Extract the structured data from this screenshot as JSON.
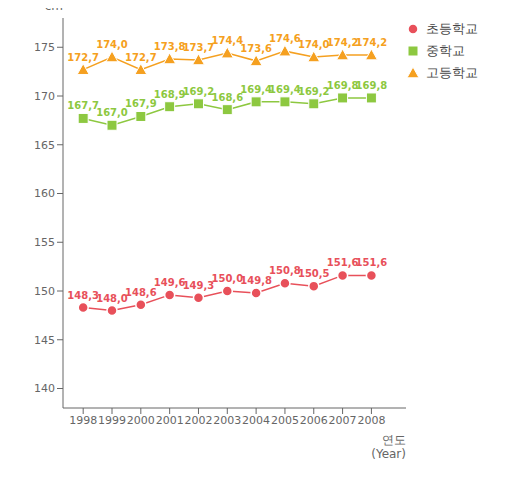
{
  "chart_data": {
    "type": "line",
    "x": [
      1998,
      1999,
      2000,
      2001,
      2002,
      2003,
      2004,
      2005,
      2006,
      2007,
      2008
    ],
    "xlim": [
      1997.3,
      2009.2
    ],
    "xticks": [
      1998,
      1999,
      2000,
      2001,
      2002,
      2003,
      2004,
      2005,
      2006,
      2007,
      2008
    ],
    "ylim": [
      138,
      178
    ],
    "yticks": [
      140,
      145,
      150,
      155,
      160,
      165,
      170,
      175
    ],
    "ylabel": "cm",
    "xlabel": "연도\n(Year)",
    "legend": "upper right",
    "data_labels": true,
    "grid": false,
    "series": [
      {
        "name": "초등학교",
        "color": "#e8505a",
        "marker": "circle",
        "values": [
          148.3,
          148.0,
          148.6,
          149.6,
          149.3,
          150.0,
          149.8,
          150.8,
          150.5,
          151.6,
          151.6
        ],
        "value_labels": [
          "148,3",
          "148,0",
          "148,6",
          "149,6",
          "149,3",
          "150,0",
          "149,8",
          "150,8",
          "150,5",
          "151,6",
          "151,6"
        ]
      },
      {
        "name": "중학교",
        "color": "#8dc840",
        "marker": "square",
        "values": [
          167.7,
          167.0,
          167.9,
          168.9,
          169.2,
          168.6,
          169.4,
          169.4,
          169.2,
          169.8,
          169.8
        ],
        "value_labels": [
          "167,7",
          "167,0",
          "167,9",
          "168,9",
          "169,2",
          "168,6",
          "169,4",
          "169,4",
          "169,2",
          "169,8",
          "169,8"
        ]
      },
      {
        "name": "고등학교",
        "color": "#f5a020",
        "marker": "triangle",
        "values": [
          172.7,
          174.0,
          172.7,
          173.8,
          173.7,
          174.4,
          173.6,
          174.6,
          174.0,
          174.2,
          174.2
        ],
        "value_labels": [
          "172,7",
          "174,0",
          "172,7",
          "173,8",
          "173,7",
          "174,4",
          "173,6",
          "174,6",
          "174,0",
          "174,2",
          "174,2"
        ]
      }
    ]
  }
}
